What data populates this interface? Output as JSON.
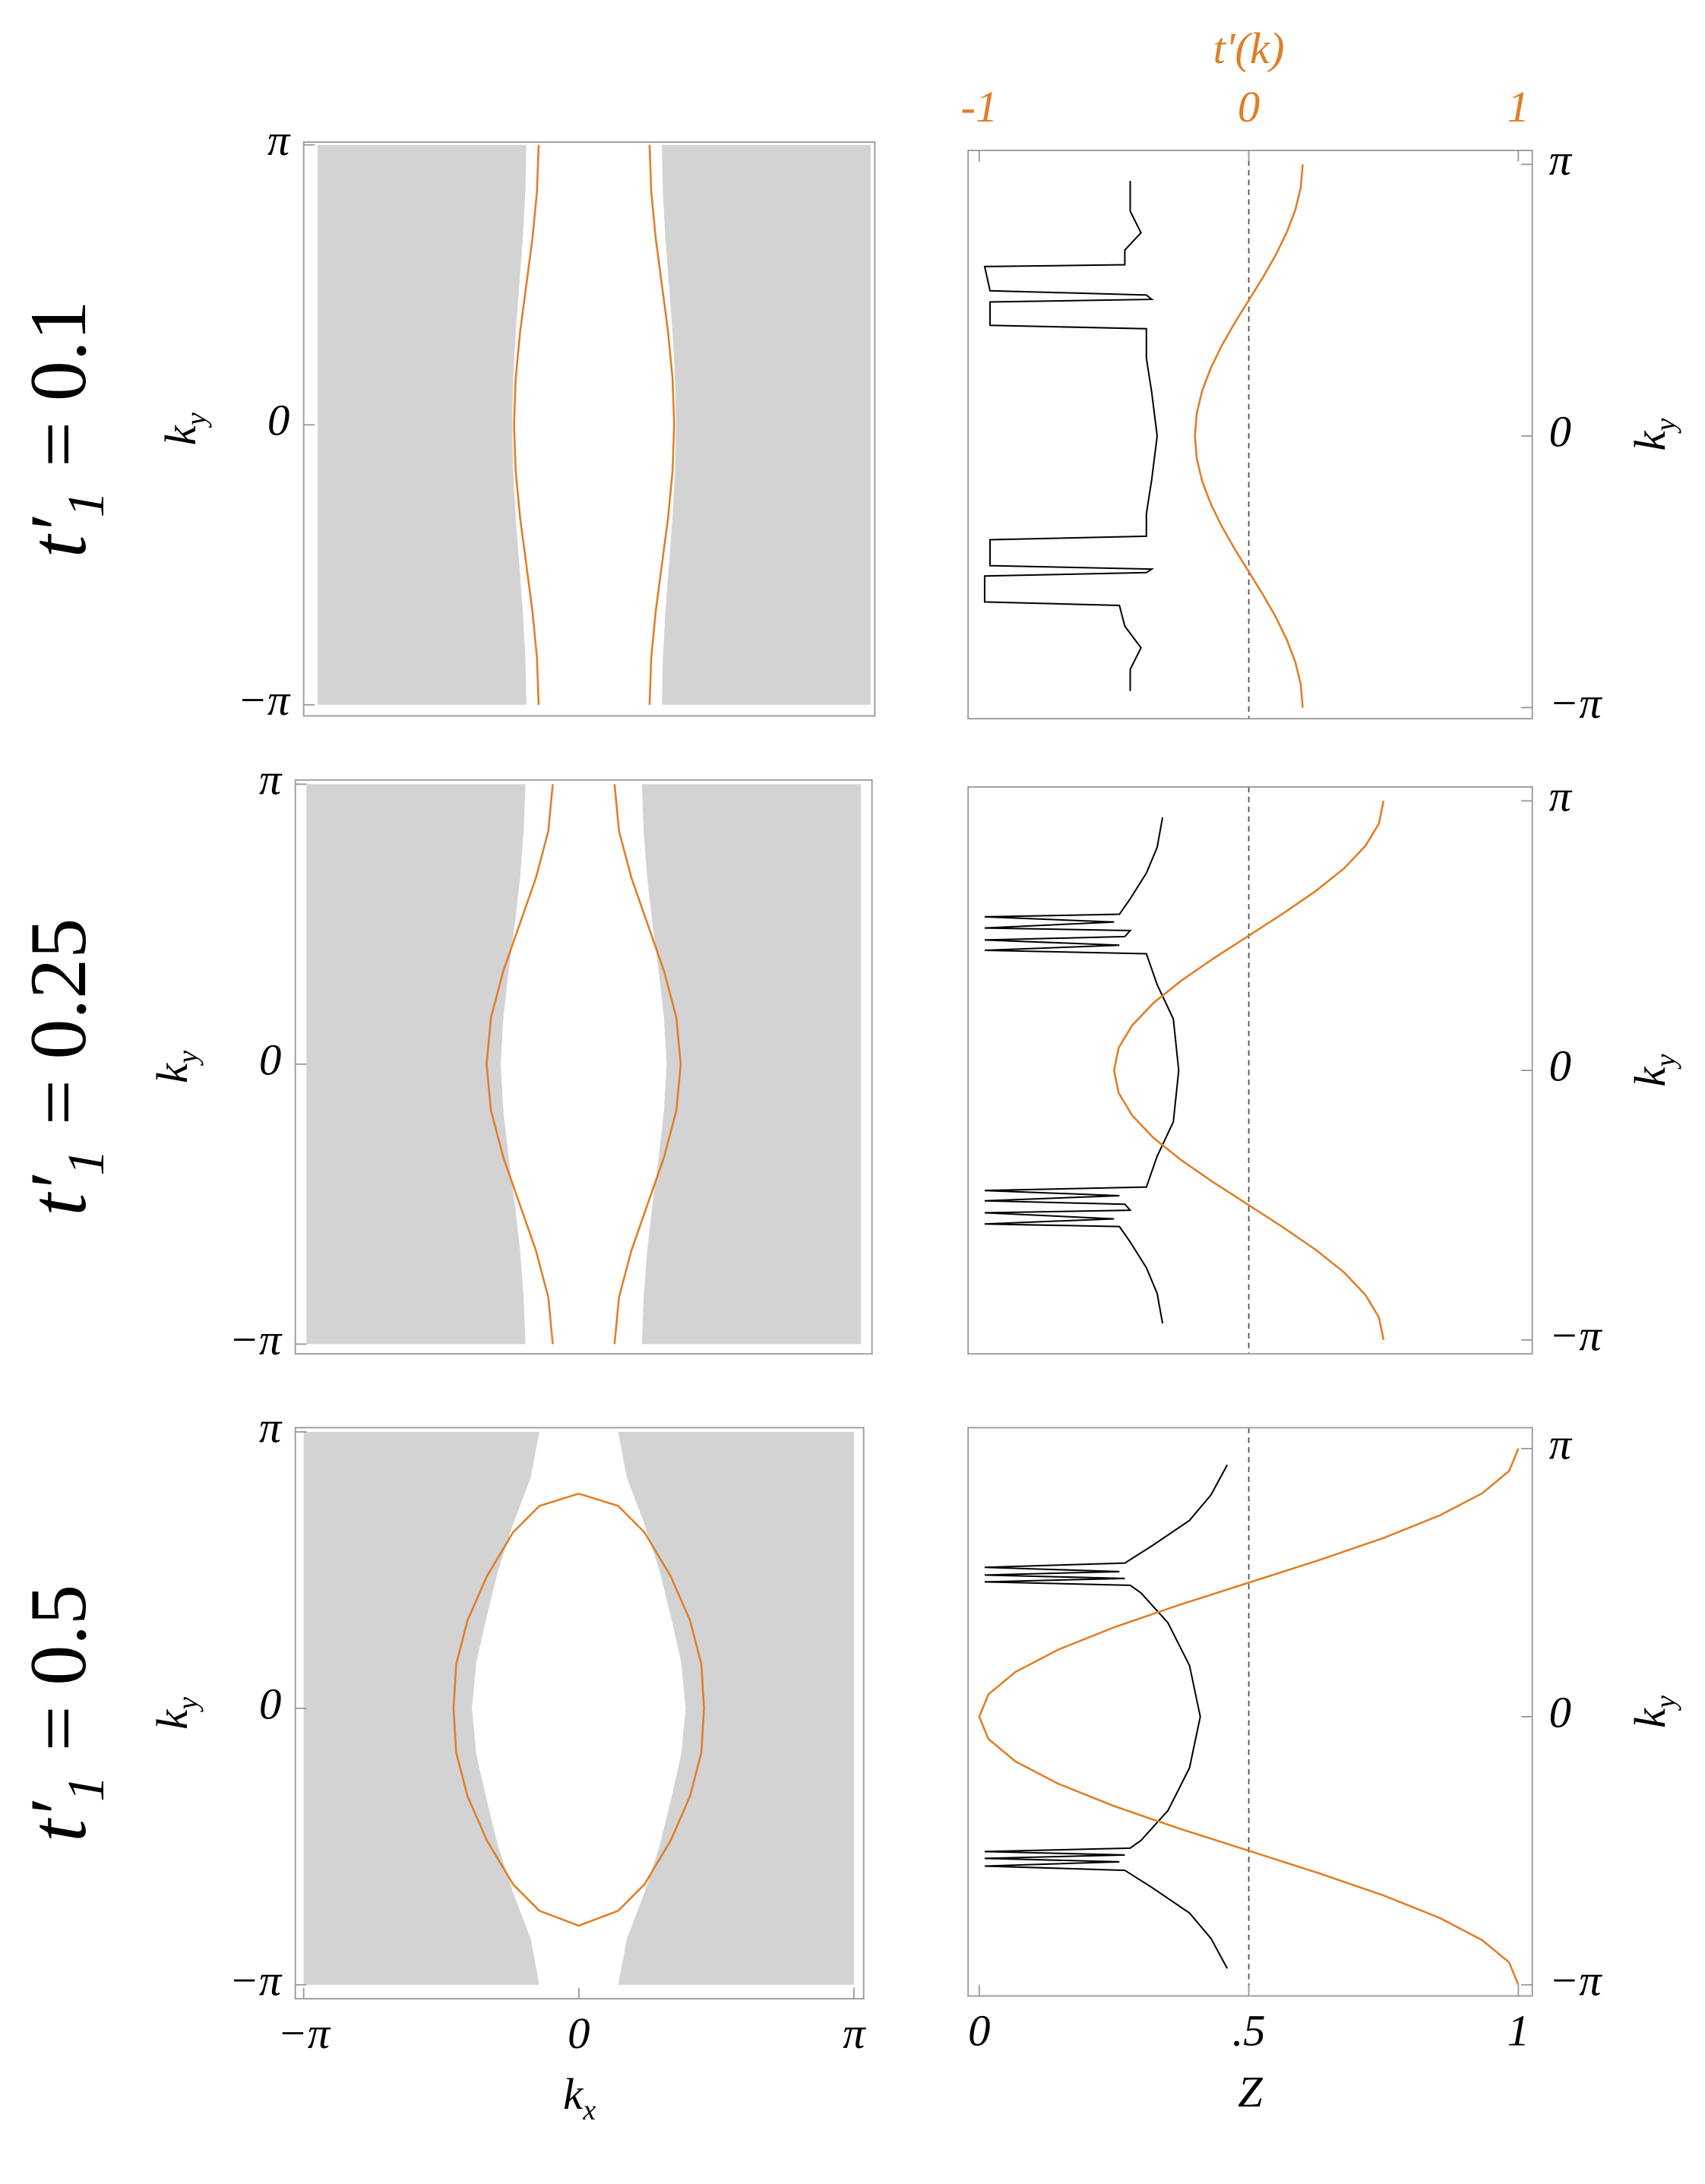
{
  "chart_data": [
    {
      "type": "contour",
      "row_label": {
        "symbol": "t′",
        "subscript": "1",
        "text": "= 0.1"
      },
      "ylabel": {
        "symbol": "k",
        "subscript": "y"
      },
      "yaxis_side": "left",
      "xlim": [
        -3.1416,
        3.1416
      ],
      "ylim": [
        -3.1416,
        3.1416
      ],
      "yticks": [
        {
          "value": 3.1416,
          "label": "π"
        },
        0,
        {
          "value": -3.1416,
          "label": "−π"
        }
      ],
      "shade": {
        "color": "#d3d3d3",
        "y": [
          -3.1416,
          -2.618,
          -2.0944,
          -1.5708,
          -1.0472,
          -0.5236,
          0,
          0.5236,
          1.0472,
          1.5708,
          2.0944,
          2.618,
          3.1416
        ],
        "inner": [
          0.77,
          0.781,
          0.81,
          0.85,
          0.89,
          0.919,
          0.93,
          0.919,
          0.89,
          0.85,
          0.81,
          0.781,
          0.77
        ]
      },
      "series": [
        {
          "color": "#e07e27",
          "y": [
            -3.1416,
            -2.618,
            -2.0944,
            -1.5708,
            -1.0472,
            -0.5236,
            0,
            0.5236,
            1.0472,
            1.5708,
            2.0944,
            2.618,
            3.1416
          ],
          "values": [
            -0.63,
            -0.649,
            -0.7,
            -0.77,
            -0.84,
            -0.891,
            -0.91,
            -0.891,
            -0.84,
            -0.77,
            -0.7,
            -0.649,
            -0.63
          ]
        },
        {
          "color": "#e07e27",
          "y": [
            -3.1416,
            -2.618,
            -2.0944,
            -1.5708,
            -1.0472,
            -0.5236,
            0,
            0.5236,
            1.0472,
            1.5708,
            2.0944,
            2.618,
            3.1416
          ],
          "values": [
            0.63,
            0.649,
            0.7,
            0.77,
            0.84,
            0.891,
            0.91,
            0.891,
            0.84,
            0.77,
            0.7,
            0.649,
            0.63
          ]
        }
      ]
    },
    {
      "type": "line",
      "ylabel": {
        "symbol": "k",
        "subscript": "y"
      },
      "yaxis_side": "right",
      "x2label": "t'(k)",
      "x2color": "#e07e27",
      "xlim": [
        0,
        1
      ],
      "x2lim": [
        -1,
        1
      ],
      "ylim": [
        -3.1416,
        3.1416
      ],
      "x2ticks": [
        -1,
        0,
        1
      ],
      "refline_x2": 0,
      "yticks": [
        {
          "value": 3.1416,
          "label": "π"
        },
        0,
        {
          "value": -3.1416,
          "label": "−π"
        }
      ],
      "series": [
        {
          "color": "#000000",
          "y": [
            2.95,
            2.6,
            2.35,
            2.15,
            1.98,
            1.96,
            1.68,
            1.63,
            1.58,
            1.55,
            1.28,
            1.24,
            0.9,
            0.5,
            0,
            -0.5,
            -0.9,
            -1.16,
            -1.2,
            -1.5,
            -1.54,
            -1.58,
            -1.62,
            -1.92,
            -1.96,
            -2.2,
            -2.45,
            -2.7,
            -2.95
          ],
          "values": [
            0.28,
            0.28,
            0.3,
            0.27,
            0.27,
            0.01,
            0.02,
            0.31,
            0.32,
            0.02,
            0.02,
            0.31,
            0.31,
            0.32,
            0.33,
            0.32,
            0.31,
            0.31,
            0.02,
            0.02,
            0.32,
            0.31,
            0.01,
            0.01,
            0.26,
            0.27,
            0.3,
            0.28,
            0.28
          ]
        },
        {
          "color": "#e07e27",
          "axis": "x2",
          "y": [
            -3.1416,
            -2.8798,
            -2.618,
            -2.3562,
            -2.0944,
            -1.8326,
            -1.5708,
            -1.309,
            -1.0472,
            -0.7854,
            -0.5236,
            -0.2618,
            0,
            0.2618,
            0.5236,
            0.7854,
            1.0472,
            1.309,
            1.5708,
            1.8326,
            2.0944,
            2.3562,
            2.618,
            2.8798,
            3.1416
          ],
          "values": [
            0.2,
            0.193,
            0.173,
            0.141,
            0.1,
            0.052,
            0,
            -0.052,
            -0.1,
            -0.141,
            -0.173,
            -0.193,
            -0.2,
            -0.193,
            -0.173,
            -0.141,
            -0.1,
            -0.052,
            0,
            0.052,
            0.1,
            0.141,
            0.173,
            0.193,
            0.2
          ]
        }
      ]
    },
    {
      "type": "contour",
      "row_label": {
        "symbol": "t′",
        "subscript": "1",
        "text": "= 0.25"
      },
      "ylabel": {
        "symbol": "k",
        "subscript": "y"
      },
      "yaxis_side": "left",
      "xlim": [
        -3.1416,
        3.1416
      ],
      "ylim": [
        -3.1416,
        3.1416
      ],
      "yticks": [
        {
          "value": 3.1416,
          "label": "π"
        },
        0,
        {
          "value": -3.1416,
          "label": "−π"
        }
      ],
      "shade": {
        "color": "#d3d3d3",
        "y": [
          -3.1416,
          -2.618,
          -2.0944,
          -1.5708,
          -1.0472,
          -0.5236,
          0,
          0.5236,
          1.0472,
          1.5708,
          2.0944,
          2.618,
          3.1416
        ],
        "inner": [
          0.66,
          0.68,
          0.72,
          0.78,
          0.85,
          0.91,
          0.94,
          0.91,
          0.85,
          0.78,
          0.72,
          0.68,
          0.66
        ]
      },
      "series": [
        {
          "color": "#e07e27",
          "y": [
            -3.1416,
            -2.618,
            -2.0944,
            -1.5708,
            -1.0472,
            -0.5236,
            0,
            0.5236,
            1.0472,
            1.5708,
            2.0944,
            2.618,
            3.1416
          ],
          "values": [
            -0.35,
            -0.4,
            -0.54,
            -0.725,
            -0.91,
            -1.05,
            -1.1,
            -1.05,
            -0.91,
            -0.725,
            -0.54,
            -0.4,
            -0.35
          ]
        },
        {
          "color": "#e07e27",
          "y": [
            -3.1416,
            -2.618,
            -2.0944,
            -1.5708,
            -1.0472,
            -0.5236,
            0,
            0.5236,
            1.0472,
            1.5708,
            2.0944,
            2.618,
            3.1416
          ],
          "values": [
            0.35,
            0.4,
            0.54,
            0.725,
            0.91,
            1.05,
            1.1,
            1.05,
            0.91,
            0.725,
            0.54,
            0.4,
            0.35
          ]
        }
      ]
    },
    {
      "type": "line",
      "ylabel": {
        "symbol": "k",
        "subscript": "y"
      },
      "yaxis_side": "right",
      "xlim": [
        0,
        1
      ],
      "x2lim": [
        -1,
        1
      ],
      "ylim": [
        -3.1416,
        3.1416
      ],
      "refline_x2": 0,
      "yticks": [
        {
          "value": 3.1416,
          "label": "π"
        },
        0,
        {
          "value": -3.1416,
          "label": "−π"
        }
      ],
      "series": [
        {
          "color": "#000000",
          "y": [
            2.95,
            2.6,
            2.3,
            2.0,
            1.82,
            1.79,
            1.73,
            1.66,
            1.63,
            1.56,
            1.52,
            1.46,
            1.4,
            1.36,
            1.0,
            0.6,
            0,
            -0.6,
            -1.0,
            -1.36,
            -1.4,
            -1.46,
            -1.52,
            -1.56,
            -1.63,
            -1.66,
            -1.73,
            -1.79,
            -1.82,
            -2.0,
            -2.3,
            -2.6,
            -2.95
          ],
          "values": [
            0.34,
            0.33,
            0.31,
            0.28,
            0.26,
            0.01,
            0.25,
            0.01,
            0.28,
            0.27,
            0.01,
            0.26,
            0.01,
            0.31,
            0.33,
            0.36,
            0.37,
            0.36,
            0.33,
            0.31,
            0.01,
            0.26,
            0.01,
            0.27,
            0.28,
            0.01,
            0.25,
            0.01,
            0.26,
            0.28,
            0.31,
            0.33,
            0.34
          ]
        },
        {
          "color": "#e07e27",
          "axis": "x2",
          "y": [
            -3.1416,
            -2.8798,
            -2.618,
            -2.3562,
            -2.0944,
            -1.8326,
            -1.5708,
            -1.309,
            -1.0472,
            -0.7854,
            -0.5236,
            -0.2618,
            0,
            0.2618,
            0.5236,
            0.7854,
            1.0472,
            1.309,
            1.5708,
            1.8326,
            2.0944,
            2.3562,
            2.618,
            2.8798,
            3.1416
          ],
          "values": [
            0.5,
            0.483,
            0.433,
            0.354,
            0.25,
            0.129,
            0,
            -0.129,
            -0.25,
            -0.354,
            -0.433,
            -0.483,
            -0.5,
            -0.483,
            -0.433,
            -0.354,
            -0.25,
            -0.129,
            0,
            0.129,
            0.25,
            0.354,
            0.433,
            0.483,
            0.5
          ]
        }
      ]
    },
    {
      "type": "contour",
      "row_label": {
        "symbol": "t′",
        "subscript": "1",
        "text": "= 0.5"
      },
      "ylabel": {
        "symbol": "k",
        "subscript": "y"
      },
      "yaxis_side": "left",
      "xlabel": {
        "symbol": "k",
        "subscript": "x"
      },
      "xlim": [
        -3.1416,
        3.1416
      ],
      "ylim": [
        -3.1416,
        3.1416
      ],
      "xticks": [
        {
          "value": -3.1416,
          "label": "−π"
        },
        0,
        {
          "value": 3.1416,
          "label": "π"
        }
      ],
      "yticks": [
        {
          "value": 3.1416,
          "label": "π"
        },
        0,
        {
          "value": -3.1416,
          "label": "−π"
        }
      ],
      "shade": {
        "color": "#d3d3d3",
        "y": [
          -3.1416,
          -2.618,
          -2.0944,
          -1.5708,
          -1.0472,
          -0.5236,
          0,
          0.5236,
          1.0472,
          1.5708,
          2.0944,
          2.618,
          3.1416
        ],
        "inner": [
          0.45,
          0.55,
          0.75,
          0.92,
          1.05,
          1.17,
          1.22,
          1.17,
          1.05,
          0.92,
          0.75,
          0.55,
          0.45
        ]
      },
      "series": [
        {
          "color": "#e07e27",
          "y": [
            2.44,
            2.3,
            2.0,
            1.5,
            1.0,
            0.5,
            0,
            -0.5,
            -1.0,
            -1.5,
            -2.0,
            -2.3,
            -2.47,
            -2.3,
            -2.0,
            -1.5,
            -1.0,
            -0.5,
            0,
            0.5,
            1.0,
            1.5,
            2.0,
            2.3,
            2.44
          ],
          "values": [
            0,
            0.45,
            0.75,
            1.05,
            1.27,
            1.4,
            1.43,
            1.4,
            1.27,
            1.05,
            0.75,
            0.45,
            0,
            -0.45,
            -0.75,
            -1.05,
            -1.27,
            -1.4,
            -1.43,
            -1.4,
            -1.27,
            -1.05,
            -0.75,
            -0.45,
            0
          ]
        }
      ]
    },
    {
      "type": "line",
      "ylabel": {
        "symbol": "k",
        "subscript": "y"
      },
      "yaxis_side": "right",
      "xlabel": "Z",
      "xlim": [
        0,
        1
      ],
      "x2lim": [
        -1,
        1
      ],
      "ylim": [
        -3.1416,
        3.1416
      ],
      "refline_x2": 0,
      "xticks": [
        0,
        {
          "value": 0.5,
          "label": ".5"
        },
        1
      ],
      "yticks": [
        {
          "value": 3.1416,
          "label": "π"
        },
        0,
        {
          "value": -3.1416,
          "label": "−π"
        }
      ],
      "series": [
        {
          "color": "#000000",
          "y": [
            2.95,
            2.6,
            2.3,
            2.0,
            1.8,
            1.75,
            1.7,
            1.66,
            1.62,
            1.58,
            1.54,
            1.45,
            1.1,
            0.6,
            0,
            -0.6,
            -1.1,
            -1.45,
            -1.54,
            -1.58,
            -1.62,
            -1.66,
            -1.7,
            -1.75,
            -1.8,
            -2.0,
            -2.3,
            -2.6,
            -2.95
          ],
          "values": [
            0.46,
            0.43,
            0.39,
            0.32,
            0.27,
            0.01,
            0.26,
            0.01,
            0.27,
            0.01,
            0.28,
            0.3,
            0.35,
            0.39,
            0.41,
            0.39,
            0.35,
            0.3,
            0.28,
            0.01,
            0.27,
            0.01,
            0.26,
            0.01,
            0.27,
            0.32,
            0.39,
            0.43,
            0.46
          ]
        },
        {
          "color": "#e07e27",
          "axis": "x2",
          "y": [
            -3.1416,
            -2.8798,
            -2.618,
            -2.3562,
            -2.0944,
            -1.8326,
            -1.5708,
            -1.309,
            -1.0472,
            -0.7854,
            -0.5236,
            -0.2618,
            0,
            0.2618,
            0.5236,
            0.7854,
            1.0472,
            1.309,
            1.5708,
            1.8326,
            2.0944,
            2.3562,
            2.618,
            2.8798,
            3.1416
          ],
          "values": [
            1,
            0.966,
            0.866,
            0.707,
            0.5,
            0.259,
            0,
            -0.259,
            -0.5,
            -0.707,
            -0.866,
            -0.966,
            -1,
            -0.966,
            -0.866,
            -0.707,
            -0.5,
            -0.259,
            0,
            0.259,
            0.5,
            0.707,
            0.866,
            0.966,
            1
          ]
        }
      ]
    }
  ]
}
